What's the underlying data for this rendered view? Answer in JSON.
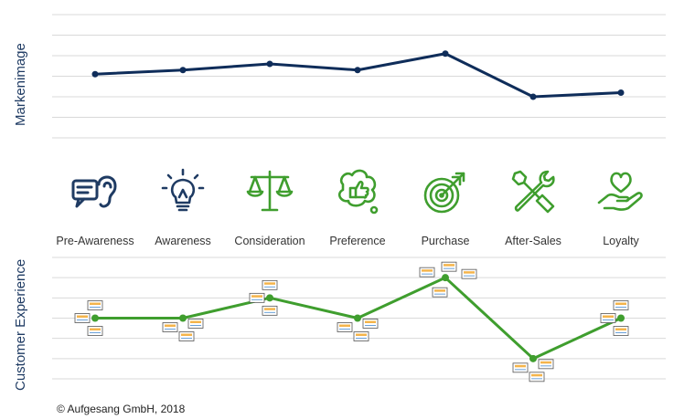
{
  "chart_data": [
    {
      "type": "line",
      "ylabel": "Markenimage",
      "categories": [
        "Pre-Awareness",
        "Awareness",
        "Consideration",
        "Preference",
        "Purchase",
        "After-Sales",
        "Loyalty"
      ],
      "series": [
        {
          "values": [
            3.1,
            3.3,
            3.6,
            3.3,
            4.1,
            2.0,
            2.2
          ]
        }
      ],
      "ylim": [
        0,
        6
      ],
      "grid": true,
      "color": "#0f2d5a"
    },
    {
      "type": "line",
      "ylabel": "Customer Experience",
      "categories": [
        "Pre-Awareness",
        "Awareness",
        "Consideration",
        "Preference",
        "Purchase",
        "After-Sales",
        "Loyalty"
      ],
      "series": [
        {
          "values": [
            3.0,
            3.0,
            4.0,
            3.0,
            5.0,
            1.0,
            3.0
          ]
        }
      ],
      "ylim": [
        0,
        6
      ],
      "grid": true,
      "color": "#3f9e2e"
    }
  ],
  "stages": [
    {
      "label": "Pre-Awareness",
      "icon": "chat-bubbles-ear-icon"
    },
    {
      "label": "Awareness",
      "icon": "lightbulb-icon"
    },
    {
      "label": "Consideration",
      "icon": "scales-icon"
    },
    {
      "label": "Preference",
      "icon": "thumbs-up-thought-icon"
    },
    {
      "label": "Purchase",
      "icon": "target-arrow-icon"
    },
    {
      "label": "After-Sales",
      "icon": "wrench-screwdriver-icon"
    },
    {
      "label": "Loyalty",
      "icon": "heart-hand-icon"
    }
  ],
  "colors": {
    "navy": "#1f3b63",
    "green": "#3f9e2e",
    "grid": "#d9d9d9"
  },
  "copyright": "© Aufgesang GmbH, 2018"
}
